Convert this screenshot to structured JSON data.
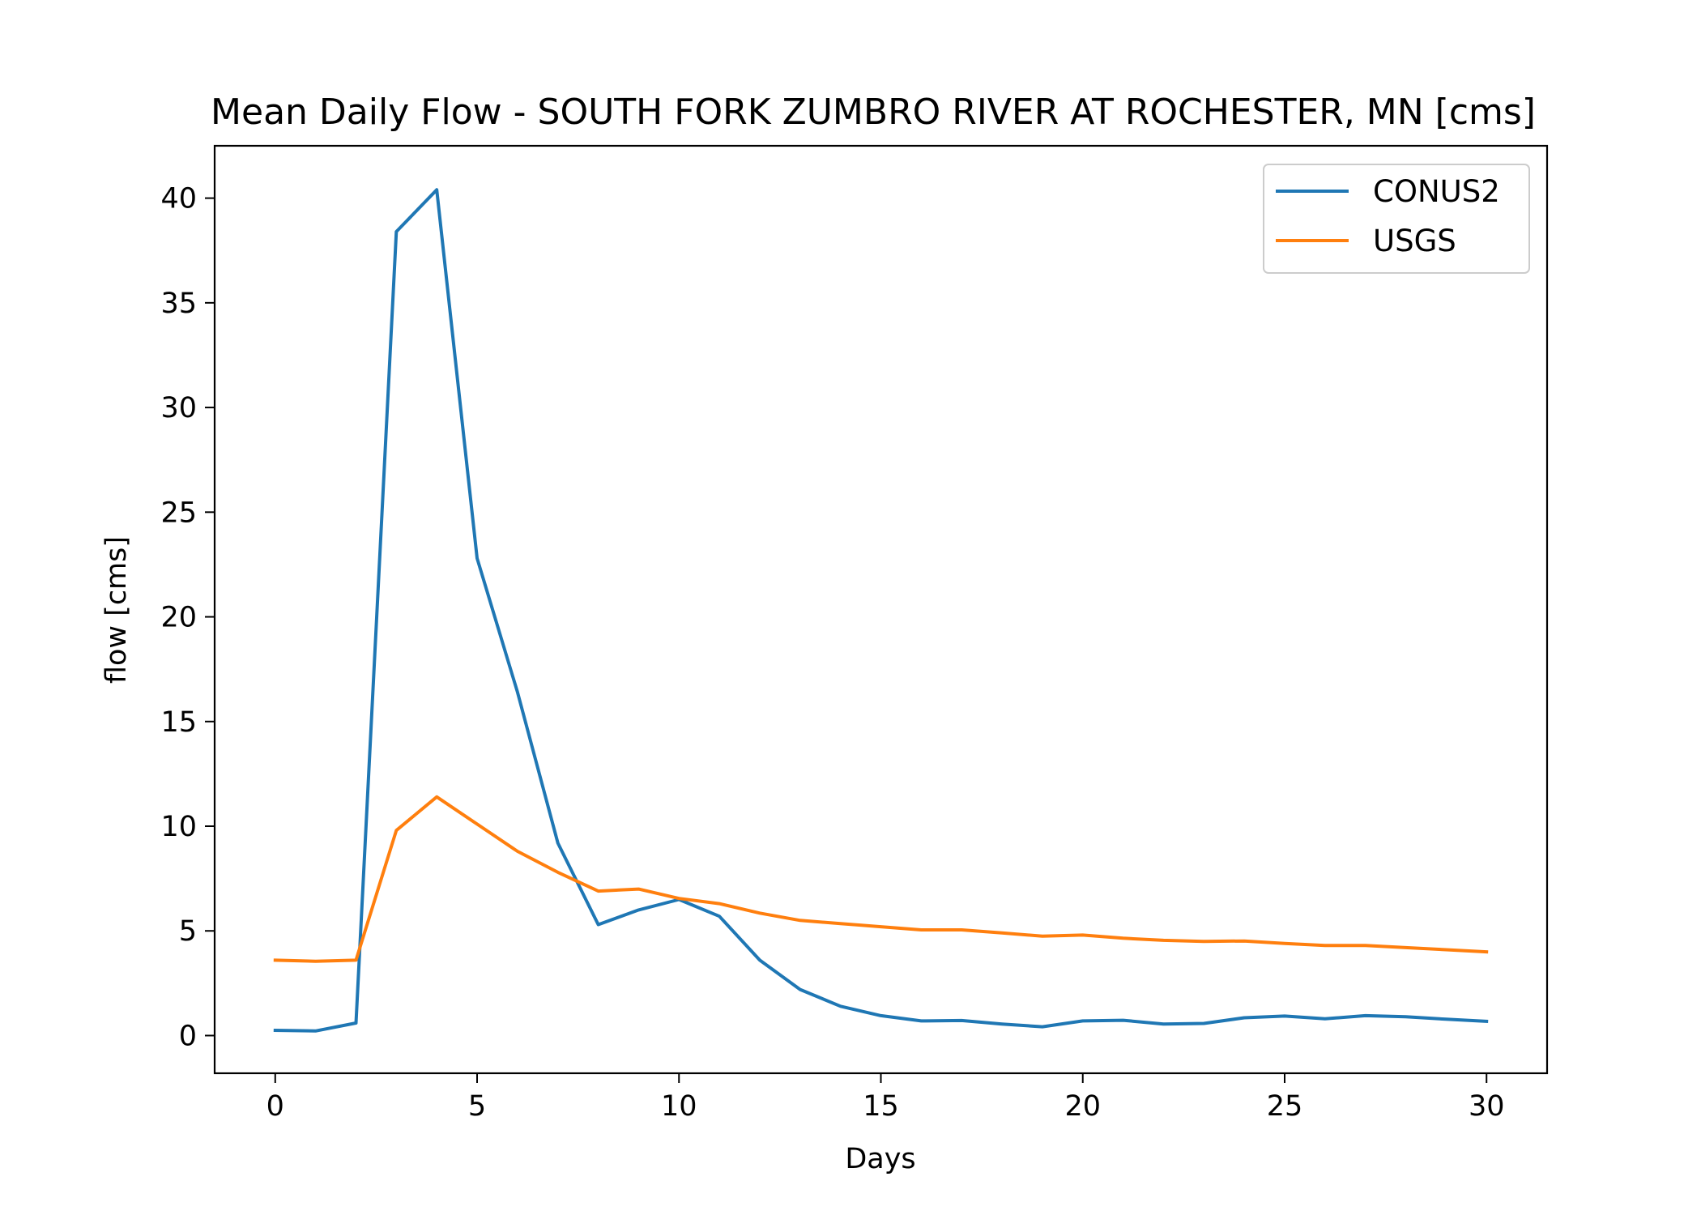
{
  "chart_data": {
    "type": "line",
    "title": "Mean Daily Flow - SOUTH FORK ZUMBRO RIVER AT ROCHESTER, MN [cms]",
    "xlabel": "Days",
    "ylabel": "flow [cms]",
    "xlim": [
      -1.5,
      31.5
    ],
    "ylim": [
      -1.8,
      42.5
    ],
    "xticks": [
      0,
      5,
      10,
      15,
      20,
      25,
      30
    ],
    "yticks": [
      0,
      5,
      10,
      15,
      20,
      25,
      30,
      35,
      40
    ],
    "grid": false,
    "legend_position": "top-right",
    "x": [
      0,
      1,
      2,
      3,
      4,
      5,
      6,
      7,
      8,
      9,
      10,
      11,
      12,
      13,
      14,
      15,
      16,
      17,
      18,
      19,
      20,
      21,
      22,
      23,
      24,
      25,
      26,
      27,
      28,
      29,
      30
    ],
    "series": [
      {
        "name": "CONUS2",
        "color": "#1f77b4",
        "values": [
          0.25,
          0.22,
          0.6,
          38.4,
          40.4,
          22.8,
          16.4,
          9.2,
          5.3,
          6.0,
          6.5,
          5.7,
          3.6,
          2.2,
          1.4,
          0.95,
          0.7,
          0.72,
          0.55,
          0.42,
          0.7,
          0.73,
          0.55,
          0.58,
          0.85,
          0.93,
          0.8,
          0.95,
          0.9,
          0.78,
          0.68
        ]
      },
      {
        "name": "USGS",
        "color": "#ff7f0e",
        "values": [
          3.6,
          3.55,
          3.6,
          9.8,
          11.4,
          10.1,
          8.8,
          7.8,
          6.9,
          7.0,
          6.55,
          6.3,
          5.85,
          5.5,
          5.35,
          5.2,
          5.05,
          5.05,
          4.9,
          4.75,
          4.8,
          4.65,
          4.55,
          4.5,
          4.52,
          4.4,
          4.3,
          4.3,
          4.2,
          4.1,
          4.0
        ]
      }
    ]
  }
}
